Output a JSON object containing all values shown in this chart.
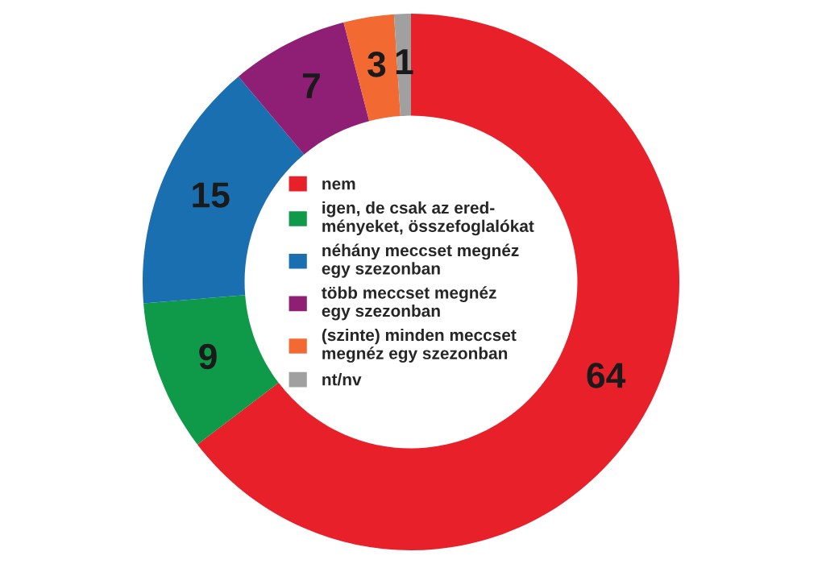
{
  "chart_data": {
    "type": "donut",
    "categories": [
      "nem",
      "igen, de csak az ered-\nményeket, összefoglalókat",
      "néhány meccset megnéz\negy szezonban",
      "több meccset megnéz\negy szezonban",
      "(szinte) minden meccset\nmegnéz egy szezonban",
      "nt/nv"
    ],
    "values": [
      64,
      9,
      15,
      7,
      3,
      1
    ],
    "colors": [
      "#e8202a",
      "#0e9a48",
      "#1a6fb0",
      "#8e1f74",
      "#f26a32",
      "#a0a0a0"
    ],
    "data_labels": true,
    "legend": "center"
  }
}
